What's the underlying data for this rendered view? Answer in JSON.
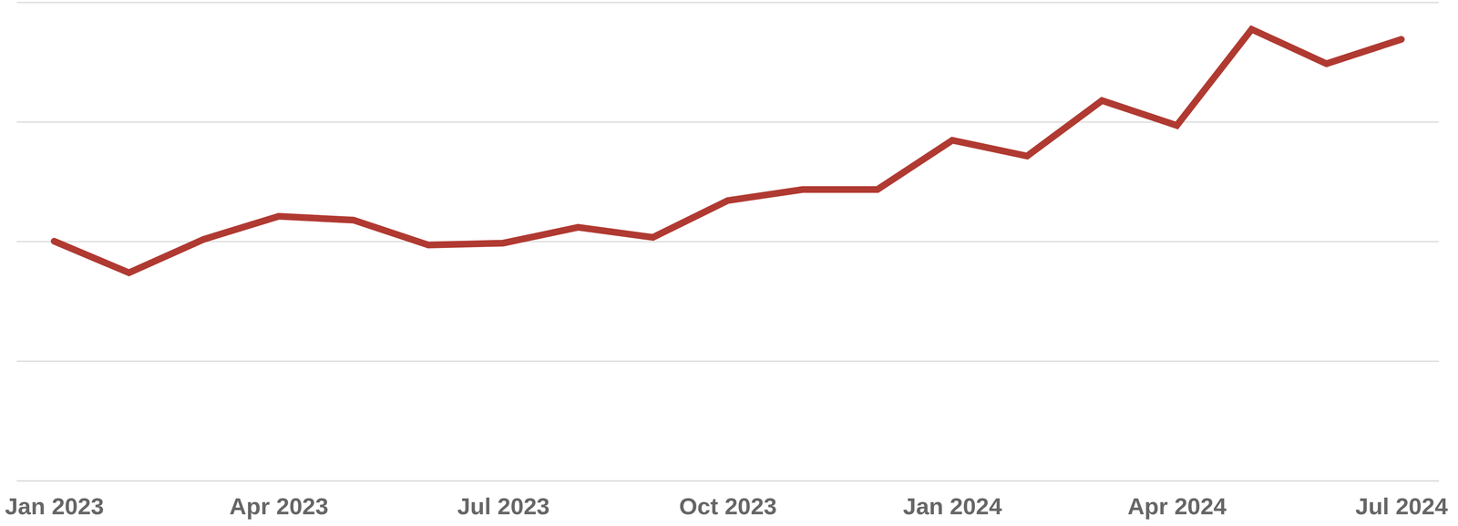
{
  "chart_data": {
    "type": "line",
    "categories": [
      "Jan 2023",
      null,
      null,
      "Apr 2023",
      null,
      null,
      "Jul 2023",
      null,
      null,
      "Oct 2023",
      null,
      null,
      "Jan 2024",
      null,
      null,
      "Apr 2024",
      null,
      null,
      "Jul 2024"
    ],
    "values": [
      50.1,
      43.5,
      50.5,
      55.3,
      54.5,
      49.3,
      49.7,
      53.0,
      50.9,
      58.6,
      60.9,
      60.9,
      71.2,
      67.9,
      79.5,
      74.3,
      94.4,
      87.2,
      92.3
    ],
    "color": "#b03a32",
    "ylim": [
      0,
      100
    ],
    "yticks": [
      0,
      25,
      50,
      75,
      100
    ],
    "grid": true,
    "tick_labels": "x"
  }
}
